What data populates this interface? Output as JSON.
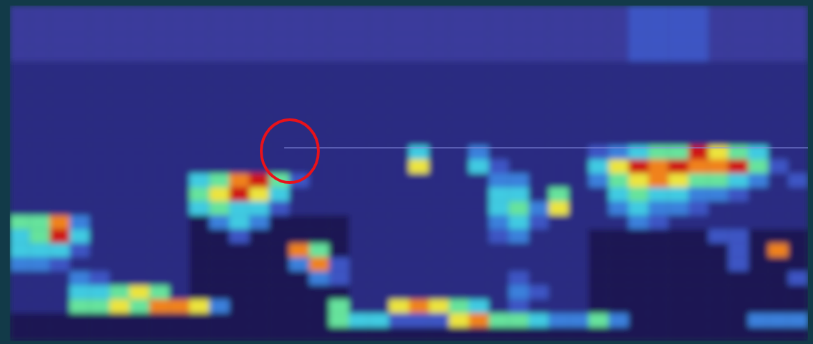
{
  "chart_data": {
    "type": "heatmap",
    "tick_labels": false,
    "xlim": [
      0,
      40
    ],
    "ylim": [
      0,
      24
    ],
    "zlim": [
      0,
      9
    ],
    "line": {
      "x": [
        13.75,
        40
      ],
      "y": 10.15
    },
    "cells": [
      [
        2,
        2,
        2,
        2,
        2,
        2,
        2,
        2,
        2,
        2,
        2,
        2,
        2,
        2,
        2,
        2,
        2,
        2,
        2,
        2,
        2,
        2,
        2,
        2,
        2,
        2,
        2,
        2,
        2,
        2,
        2,
        3,
        3,
        3,
        3,
        2,
        2,
        2,
        2,
        2
      ],
      [
        2,
        2,
        2,
        2,
        2,
        2,
        2,
        2,
        2,
        2,
        2,
        2,
        2,
        2,
        2,
        2,
        2,
        2,
        2,
        2,
        2,
        2,
        2,
        2,
        2,
        2,
        2,
        2,
        2,
        2,
        2,
        3,
        3,
        3,
        3,
        2,
        2,
        2,
        2,
        2
      ],
      [
        2,
        2,
        2,
        2,
        2,
        2,
        2,
        2,
        2,
        2,
        2,
        2,
        2,
        2,
        2,
        2,
        2,
        2,
        2,
        2,
        2,
        2,
        2,
        2,
        2,
        2,
        2,
        2,
        2,
        2,
        2,
        3,
        3,
        3,
        3,
        2,
        2,
        2,
        2,
        2
      ],
      [
        2,
        2,
        2,
        2,
        2,
        2,
        2,
        2,
        2,
        2,
        2,
        2,
        2,
        2,
        2,
        2,
        2,
        2,
        2,
        2,
        2,
        2,
        2,
        2,
        2,
        2,
        2,
        2,
        2,
        2,
        2,
        3,
        3,
        3,
        3,
        2,
        2,
        2,
        2,
        2
      ],
      [
        1,
        1,
        1,
        1,
        1,
        1,
        1,
        1,
        1,
        1,
        1,
        1,
        1,
        1,
        1,
        1,
        1,
        1,
        1,
        1,
        1,
        1,
        1,
        1,
        1,
        1,
        1,
        1,
        1,
        1,
        1,
        1,
        1,
        1,
        1,
        1,
        1,
        1,
        1,
        1
      ],
      [
        1,
        1,
        1,
        1,
        1,
        1,
        1,
        1,
        1,
        1,
        1,
        1,
        1,
        1,
        1,
        1,
        1,
        1,
        1,
        1,
        1,
        1,
        1,
        1,
        1,
        1,
        1,
        1,
        1,
        1,
        1,
        1,
        1,
        1,
        1,
        1,
        1,
        1,
        1,
        1
      ],
      [
        1,
        1,
        1,
        1,
        1,
        1,
        1,
        1,
        1,
        1,
        1,
        1,
        1,
        1,
        1,
        1,
        1,
        1,
        1,
        1,
        1,
        1,
        1,
        1,
        1,
        1,
        1,
        1,
        1,
        1,
        1,
        1,
        1,
        1,
        1,
        1,
        1,
        1,
        1,
        1
      ],
      [
        1,
        1,
        1,
        1,
        1,
        1,
        1,
        1,
        1,
        1,
        1,
        1,
        1,
        1,
        1,
        1,
        1,
        1,
        1,
        1,
        1,
        1,
        1,
        1,
        1,
        1,
        1,
        1,
        1,
        1,
        1,
        1,
        1,
        1,
        1,
        1,
        1,
        1,
        1,
        1
      ],
      [
        1,
        1,
        1,
        1,
        1,
        1,
        1,
        1,
        1,
        1,
        1,
        1,
        1,
        1,
        1,
        1,
        1,
        1,
        1,
        1,
        1,
        1,
        1,
        1,
        1,
        1,
        1,
        1,
        1,
        1,
        1,
        1,
        1,
        1,
        1,
        1,
        1,
        1,
        1,
        1
      ],
      [
        1,
        1,
        1,
        1,
        1,
        1,
        1,
        1,
        1,
        1,
        1,
        1,
        1,
        1,
        1,
        1,
        1,
        1,
        1,
        1,
        1,
        1,
        1,
        1,
        1,
        1,
        1,
        1,
        1,
        1,
        1,
        1,
        1,
        1,
        1,
        1,
        1,
        1,
        1,
        1
      ],
      [
        1,
        1,
        1,
        1,
        1,
        1,
        1,
        1,
        1,
        1,
        1,
        1,
        1,
        1,
        1,
        1,
        1,
        1,
        1,
        1,
        5,
        1,
        1,
        4,
        1,
        1,
        1,
        1,
        1,
        3,
        4,
        5,
        6,
        6,
        9,
        7,
        6,
        5,
        1,
        1
      ],
      [
        1,
        1,
        1,
        1,
        1,
        1,
        1,
        1,
        1,
        1,
        1,
        1,
        1,
        1,
        1,
        1,
        1,
        1,
        1,
        1,
        7,
        1,
        1,
        5,
        3,
        1,
        1,
        1,
        1,
        5,
        7,
        9,
        8,
        9,
        8,
        8,
        9,
        6,
        3,
        1
      ],
      [
        1,
        1,
        1,
        1,
        1,
        1,
        1,
        1,
        1,
        5,
        6,
        8,
        9,
        6,
        3,
        1,
        1,
        1,
        1,
        1,
        1,
        1,
        1,
        1,
        4,
        4,
        1,
        1,
        1,
        4,
        6,
        7,
        8,
        7,
        6,
        6,
        5,
        4,
        1,
        3
      ],
      [
        1,
        1,
        1,
        1,
        1,
        1,
        1,
        1,
        1,
        6,
        7,
        9,
        7,
        5,
        1,
        1,
        1,
        1,
        1,
        1,
        1,
        1,
        1,
        1,
        5,
        5,
        1,
        6,
        1,
        1,
        5,
        6,
        5,
        5,
        4,
        4,
        3,
        1,
        1,
        1
      ],
      [
        1,
        1,
        1,
        1,
        1,
        1,
        1,
        1,
        1,
        5,
        6,
        5,
        5,
        3,
        1,
        1,
        1,
        1,
        1,
        1,
        1,
        1,
        1,
        1,
        5,
        6,
        4,
        7,
        1,
        1,
        4,
        5,
        4,
        4,
        3,
        1,
        1,
        1,
        1,
        1
      ],
      [
        6,
        6,
        8,
        4,
        1,
        1,
        1,
        1,
        1,
        0,
        4,
        5,
        4,
        0,
        0,
        0,
        0,
        1,
        1,
        1,
        1,
        1,
        1,
        1,
        4,
        5,
        3,
        1,
        1,
        1,
        1,
        4,
        3,
        1,
        1,
        1,
        1,
        1,
        1,
        1
      ],
      [
        5,
        6,
        9,
        5,
        1,
        1,
        1,
        1,
        1,
        0,
        0,
        3,
        0,
        0,
        0,
        0,
        0,
        1,
        1,
        1,
        1,
        1,
        1,
        1,
        3,
        4,
        1,
        1,
        1,
        0,
        0,
        0,
        0,
        0,
        0,
        3,
        3,
        0,
        0,
        0
      ],
      [
        5,
        5,
        5,
        3,
        1,
        1,
        1,
        1,
        1,
        0,
        0,
        0,
        0,
        0,
        8,
        6,
        0,
        1,
        1,
        1,
        1,
        1,
        1,
        1,
        1,
        1,
        1,
        1,
        1,
        0,
        0,
        0,
        0,
        0,
        0,
        0,
        3,
        0,
        8,
        0
      ],
      [
        4,
        4,
        3,
        1,
        1,
        1,
        1,
        1,
        1,
        0,
        0,
        0,
        0,
        0,
        4,
        8,
        3,
        1,
        1,
        1,
        1,
        1,
        1,
        1,
        1,
        1,
        1,
        1,
        1,
        0,
        0,
        0,
        0,
        0,
        0,
        0,
        3,
        0,
        0,
        0
      ],
      [
        1,
        1,
        1,
        4,
        3,
        1,
        1,
        1,
        1,
        0,
        0,
        0,
        0,
        0,
        0,
        4,
        3,
        1,
        1,
        1,
        1,
        1,
        1,
        1,
        1,
        3,
        1,
        1,
        1,
        0,
        0,
        0,
        0,
        0,
        0,
        0,
        0,
        0,
        0,
        3
      ],
      [
        1,
        1,
        1,
        5,
        5,
        6,
        7,
        6,
        1,
        0,
        0,
        0,
        0,
        0,
        0,
        0,
        0,
        1,
        1,
        1,
        1,
        1,
        1,
        1,
        1,
        4,
        3,
        1,
        1,
        0,
        0,
        0,
        0,
        0,
        0,
        0,
        0,
        0,
        0,
        0
      ],
      [
        1,
        1,
        1,
        6,
        6,
        7,
        6,
        8,
        8,
        7,
        4,
        0,
        0,
        0,
        0,
        0,
        6,
        1,
        1,
        7,
        8,
        7,
        6,
        5,
        1,
        3,
        1,
        1,
        1,
        0,
        0,
        0,
        0,
        0,
        0,
        0,
        0,
        0,
        0,
        0
      ],
      [
        0,
        0,
        0,
        0,
        0,
        0,
        0,
        0,
        0,
        0,
        0,
        0,
        0,
        0,
        0,
        0,
        6,
        5,
        5,
        3,
        3,
        3,
        7,
        8,
        6,
        6,
        5,
        4,
        4,
        6,
        4,
        0,
        0,
        0,
        0,
        0,
        0,
        4,
        4,
        4
      ],
      [
        0,
        0,
        0,
        0,
        0,
        0,
        0,
        0,
        0,
        0,
        0,
        0,
        0,
        0,
        0,
        0,
        0,
        0,
        0,
        0,
        0,
        0,
        0,
        0,
        0,
        0,
        0,
        0,
        0,
        0,
        0,
        0,
        0,
        0,
        0,
        0,
        0,
        0,
        0,
        0
      ]
    ]
  }
}
